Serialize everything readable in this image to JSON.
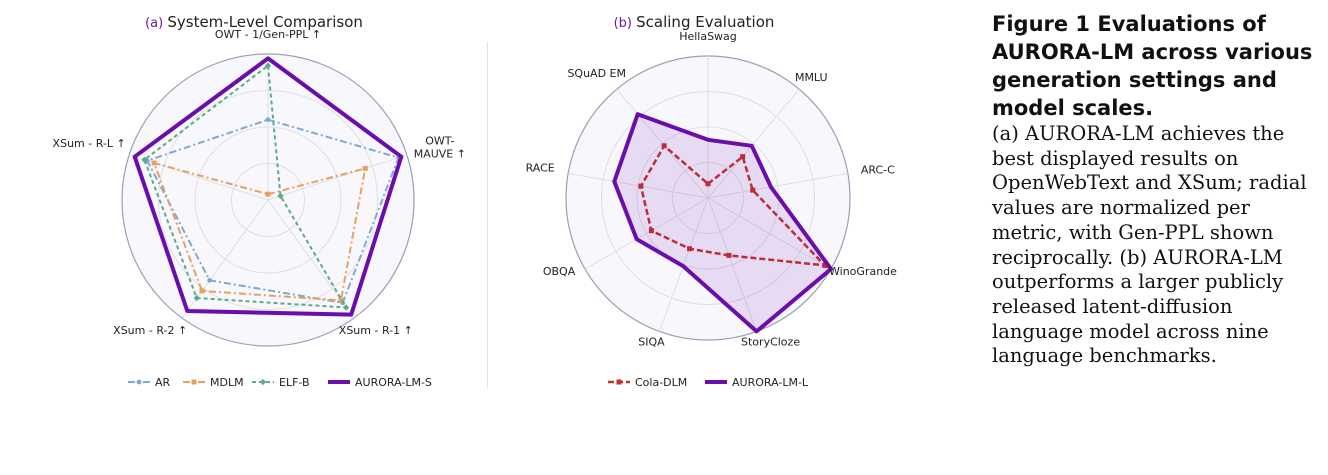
{
  "figure": {
    "caption_head": "Figure 1  Evaluations of AURORA-LM across various generation settings and model scales.",
    "caption_body": "(a) AURORA-LM achieves the best displayed results on OpenWebText and XSum; radial values are normalized per metric, with Gen-PPL shown reciprocally. (b) AURORA-LM outperforms a larger publicly released latent-diffusion language model across nine language benchmarks."
  },
  "chart_data": [
    {
      "type": "radar",
      "panel_letter": "(a)",
      "title": "System-Level Comparison",
      "axes": [
        {
          "lines": [
            "OWT - 1/Gen-PPL ↑"
          ]
        },
        {
          "lines": [
            "OWT-",
            "MAUVE ↑"
          ]
        },
        {
          "lines": [
            "XSum - R-1 ↑"
          ]
        },
        {
          "lines": [
            "XSum - R-2 ↑"
          ]
        },
        {
          "lines": [
            "XSum - R-L ↑"
          ]
        }
      ],
      "rlim": [
        0,
        1
      ],
      "grid": true,
      "legend_position": "bottom",
      "series": [
        {
          "name": "AR",
          "values": [
            0.55,
            0.94,
            0.87,
            0.68,
            0.87
          ],
          "color": "#7fa9d3",
          "dash": "7 3 2 3",
          "marker": "circle",
          "width": 2,
          "fill": false
        },
        {
          "name": "MDLM",
          "values": [
            0.04,
            0.7,
            0.85,
            0.77,
            0.82
          ],
          "color": "#e8a062",
          "dash": "7 3 2 3",
          "marker": "square",
          "width": 2,
          "fill": false
        },
        {
          "name": "ELF-B",
          "values": [
            0.92,
            0.09,
            0.91,
            0.83,
            0.89
          ],
          "color": "#5aab8a",
          "dash": "4 3",
          "marker": "diamond",
          "width": 2,
          "fill": false
        },
        {
          "name": "AURORA-LM-S",
          "values": [
            0.97,
            0.96,
            0.97,
            0.94,
            0.96
          ],
          "color": "#6a0dad",
          "dash": "",
          "marker": "none",
          "width": 4,
          "fill": false
        }
      ]
    },
    {
      "type": "radar",
      "panel_letter": "(b)",
      "title": "Scaling Evaluation",
      "axes": [
        {
          "lines": [
            "HellaSwag"
          ]
        },
        {
          "lines": [
            "MMLU"
          ]
        },
        {
          "lines": [
            "ARC-C"
          ]
        },
        {
          "lines": [
            "WinoGrande"
          ]
        },
        {
          "lines": [
            "StoryCloze"
          ]
        },
        {
          "lines": [
            "SIQA"
          ]
        },
        {
          "lines": [
            "OBQA"
          ]
        },
        {
          "lines": [
            "RACE"
          ]
        },
        {
          "lines": [
            "SQuAD EM"
          ]
        }
      ],
      "rlim": [
        0,
        1
      ],
      "grid": true,
      "legend_position": "bottom",
      "series": [
        {
          "name": "Cola-DLM",
          "values": [
            0.1,
            0.38,
            0.32,
            0.95,
            0.43,
            0.38,
            0.46,
            0.48,
            0.48
          ],
          "color": "#c9302c",
          "dash": "6 3",
          "marker": "square",
          "width": 2.5,
          "fill": false
        },
        {
          "name": "AURORA-LM-L",
          "values": [
            0.41,
            0.48,
            0.45,
            1.0,
            1.0,
            0.51,
            0.58,
            0.67,
            0.77
          ],
          "color": "#6a0dad",
          "dash": "",
          "marker": "none",
          "width": 4,
          "fill": true
        }
      ]
    }
  ]
}
